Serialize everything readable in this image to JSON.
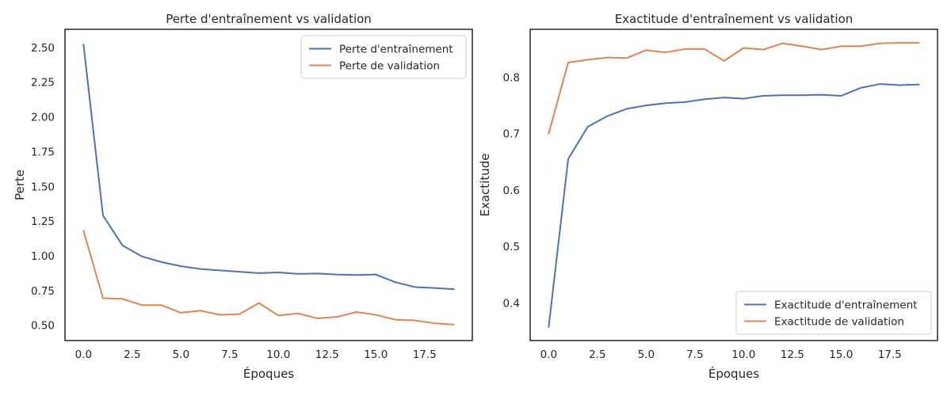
{
  "chart_data": [
    {
      "type": "line",
      "title": "Perte d'entraînement vs validation",
      "xlabel": "Époques",
      "ylabel": "Perte",
      "xlim": [
        -0.95,
        19.95
      ],
      "ylim": [
        0.39,
        2.63
      ],
      "xticks": [
        0.0,
        2.5,
        5.0,
        7.5,
        10.0,
        12.5,
        15.0,
        17.5
      ],
      "xtick_labels": [
        "0.0",
        "2.5",
        "5.0",
        "7.5",
        "10.0",
        "12.5",
        "15.0",
        "17.5"
      ],
      "yticks": [
        0.5,
        0.75,
        1.0,
        1.25,
        1.5,
        1.75,
        2.0,
        2.25,
        2.5
      ],
      "ytick_labels": [
        "0.50",
        "0.75",
        "1.00",
        "1.25",
        "1.50",
        "1.75",
        "2.00",
        "2.25",
        "2.50"
      ],
      "grid": false,
      "legend_position": "top-right",
      "x": [
        0,
        1,
        2,
        3,
        4,
        5,
        6,
        7,
        8,
        9,
        10,
        11,
        12,
        13,
        14,
        15,
        16,
        17,
        18,
        19
      ],
      "series": [
        {
          "name": "Perte d'entraînement",
          "color": "#4c72b0",
          "values": [
            2.52,
            1.29,
            1.075,
            0.995,
            0.955,
            0.925,
            0.905,
            0.895,
            0.885,
            0.875,
            0.88,
            0.87,
            0.872,
            0.865,
            0.862,
            0.865,
            0.81,
            0.775,
            0.768,
            0.76
          ]
        },
        {
          "name": "Perte de validation",
          "color": "#dd8452",
          "values": [
            1.18,
            0.695,
            0.69,
            0.645,
            0.645,
            0.59,
            0.605,
            0.575,
            0.58,
            0.66,
            0.57,
            0.585,
            0.55,
            0.56,
            0.595,
            0.575,
            0.54,
            0.535,
            0.515,
            0.505
          ]
        }
      ]
    },
    {
      "type": "line",
      "title": "Exactitude d'entraînement vs validation",
      "xlabel": "Époques",
      "ylabel": "Exactitude",
      "xlim": [
        -0.95,
        19.95
      ],
      "ylim": [
        0.333,
        0.885
      ],
      "xticks": [
        0.0,
        2.5,
        5.0,
        7.5,
        10.0,
        12.5,
        15.0,
        17.5
      ],
      "xtick_labels": [
        "0.0",
        "2.5",
        "5.0",
        "7.5",
        "10.0",
        "12.5",
        "15.0",
        "17.5"
      ],
      "yticks": [
        0.4,
        0.5,
        0.6,
        0.7,
        0.8
      ],
      "ytick_labels": [
        "0.4",
        "0.5",
        "0.6",
        "0.7",
        "0.8"
      ],
      "grid": false,
      "legend_position": "bottom-right",
      "x": [
        0,
        1,
        2,
        3,
        4,
        5,
        6,
        7,
        8,
        9,
        10,
        11,
        12,
        13,
        14,
        15,
        16,
        17,
        18,
        19
      ],
      "series": [
        {
          "name": "Exactitude d'entraînement",
          "color": "#4c72b0",
          "values": [
            0.357,
            0.655,
            0.712,
            0.731,
            0.744,
            0.75,
            0.754,
            0.756,
            0.761,
            0.764,
            0.762,
            0.767,
            0.768,
            0.768,
            0.769,
            0.767,
            0.781,
            0.788,
            0.786,
            0.787
          ]
        },
        {
          "name": "Exactitude de validation",
          "color": "#dd8452",
          "values": [
            0.7,
            0.826,
            0.831,
            0.835,
            0.834,
            0.848,
            0.844,
            0.85,
            0.85,
            0.829,
            0.852,
            0.849,
            0.86,
            0.855,
            0.849,
            0.855,
            0.855,
            0.86,
            0.861,
            0.861
          ]
        }
      ]
    }
  ]
}
